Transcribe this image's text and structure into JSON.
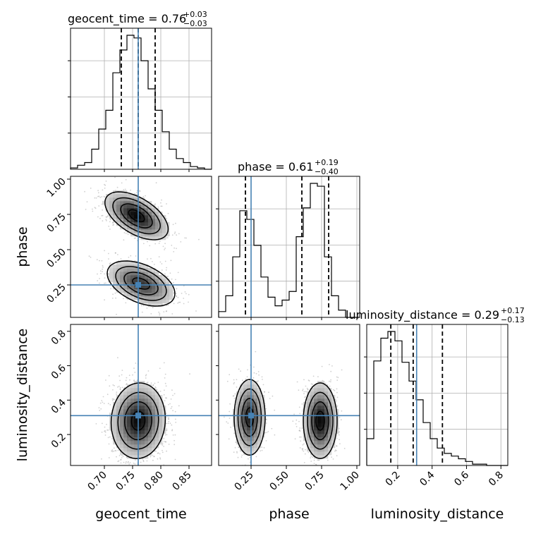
{
  "chart_data": {
    "type": "corner",
    "params": [
      "geocent_time",
      "phase",
      "luminosity_distance"
    ],
    "truth": {
      "geocent_time": 0.76,
      "phase": 0.25,
      "luminosity_distance": 0.31
    },
    "titles": [
      {
        "param": "geocent_time",
        "text": "geocent_time = 0.76",
        "sup": "+0.03",
        "sub": "−0.03"
      },
      {
        "param": "phase",
        "text": "phase = 0.61",
        "sup": "+0.19",
        "sub": "−0.40"
      },
      {
        "param": "luminosity_distance",
        "text": "luminosity_distance = 0.29",
        "sup": "+0.17",
        "sub": "−0.13"
      }
    ],
    "axes": {
      "geocent_time": {
        "range": [
          0.64,
          0.89
        ],
        "ticks": [
          0.7,
          0.75,
          0.8,
          0.85
        ],
        "tick_labels": [
          "0.70",
          "0.75",
          "0.80",
          "0.85"
        ]
      },
      "phase": {
        "range": [
          0.02,
          1.02
        ],
        "ticks": [
          0.25,
          0.5,
          0.75,
          1.0
        ],
        "tick_labels": [
          "0.25",
          "0.50",
          "0.75",
          "1.00"
        ]
      },
      "luminosity_distance": {
        "range": [
          0.02,
          0.84
        ],
        "ticks": [
          0.2,
          0.4,
          0.6,
          0.8
        ],
        "tick_labels": [
          "0.2",
          "0.4",
          "0.6",
          "0.8"
        ]
      }
    },
    "hist1d": {
      "geocent_time": {
        "edges_start": 0.64,
        "bin_width": 0.0125,
        "counts": [
          1,
          3,
          5,
          15,
          30,
          44,
          72,
          89,
          100,
          98,
          81,
          60,
          44,
          28,
          15,
          8,
          5,
          2,
          1,
          0
        ],
        "quantiles": [
          0.73,
          0.76,
          0.79
        ]
      },
      "phase": {
        "edges_start": 0.02,
        "bin_width": 0.05,
        "counts": [
          4,
          15,
          42,
          74,
          68,
          50,
          28,
          14,
          8,
          12,
          18,
          56,
          76,
          93,
          91,
          42,
          15,
          5,
          0,
          0
        ],
        "quantiles": [
          0.21,
          0.61,
          0.8
        ]
      },
      "luminosity_distance": {
        "edges_start": 0.02,
        "bin_width": 0.041,
        "counts": [
          20,
          78,
          95,
          100,
          93,
          77,
          63,
          49,
          32,
          20,
          13,
          9,
          7,
          5,
          3,
          1,
          1,
          0,
          0,
          0
        ],
        "quantiles": [
          0.16,
          0.29,
          0.46
        ]
      }
    },
    "grid": true
  }
}
